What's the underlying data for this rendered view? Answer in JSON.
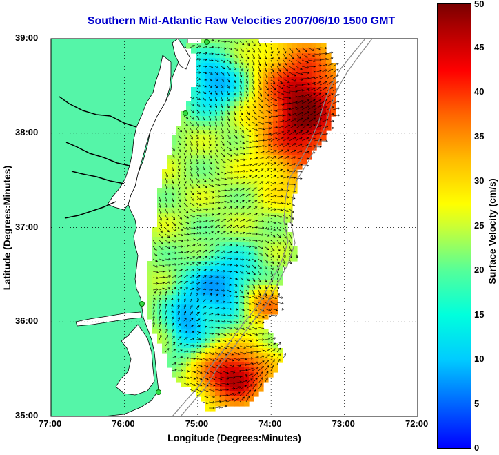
{
  "title": "Southern Mid-Atlantic Raw Velocities 2007/06/10 1500 GMT",
  "x_axis": {
    "label": "Longitude (Degrees:Minutes)",
    "ticks": [
      "77:00",
      "76:00",
      "75:00",
      "74:00",
      "73:00",
      "72:00"
    ]
  },
  "y_axis": {
    "label": "Latitude (Degrees:Minutes)",
    "ticks": [
      "39:00",
      "38:00",
      "37:00",
      "36:00",
      "35:00"
    ]
  },
  "colorbar": {
    "label": "Surface Velocity (cm/s)",
    "ticks": [
      "50",
      "45",
      "40",
      "35",
      "30",
      "25",
      "20",
      "15",
      "10",
      "5",
      "0"
    ],
    "min": 0,
    "max": 50,
    "colormap": "jet"
  },
  "map": {
    "land_color": "#55f5a8",
    "coastline_color": "#000000",
    "grid": "dotted",
    "lon_range": [
      -77,
      -72
    ],
    "lat_range": [
      35,
      39
    ]
  }
}
